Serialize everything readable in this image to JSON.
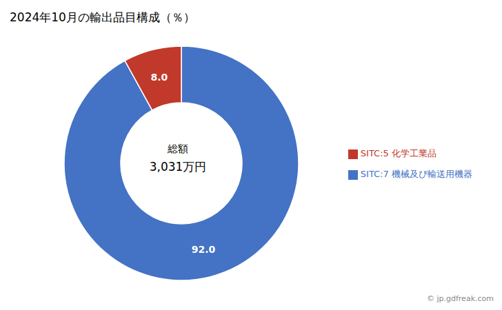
{
  "chart_data": {
    "type": "pie",
    "title": "2024年10月の輸出品目構成（％）",
    "categories": [
      "SITC:7  機械及び輸送用機器",
      "SITC:5  化学工業品"
    ],
    "values": [
      92.0,
      8.0
    ],
    "value_labels": [
      "92.0",
      "8.0"
    ],
    "data_labels": true,
    "colors": [
      "#4472C4",
      "#C0392B"
    ],
    "legend": "right",
    "annotations": [
      "総額",
      "3,031万円",
      "© jp.gdfreak.com"
    ]
  }
}
